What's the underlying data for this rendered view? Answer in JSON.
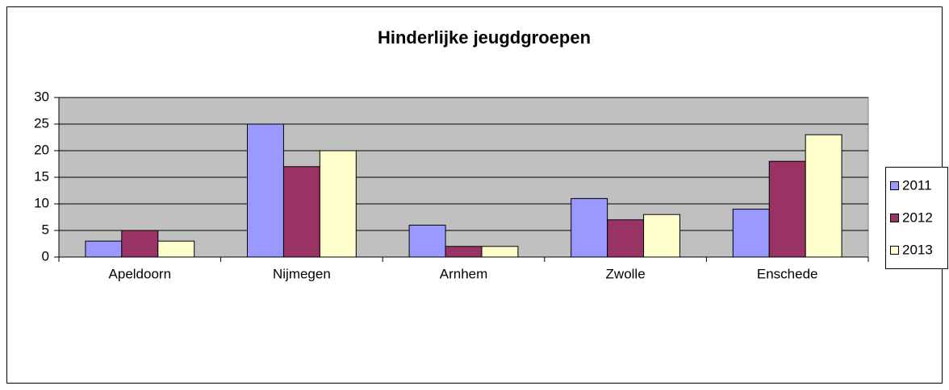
{
  "chart_data": {
    "type": "bar",
    "title": "Hinderlijke jeugdgroepen",
    "categories": [
      "Apeldoorn",
      "Nijmegen",
      "Arnhem",
      "Zwolle",
      "Enschede"
    ],
    "series": [
      {
        "name": "2011",
        "color": "#9999ff",
        "values": [
          3,
          25,
          6,
          11,
          9
        ]
      },
      {
        "name": "2012",
        "color": "#993366",
        "values": [
          5,
          17,
          2,
          7,
          18
        ]
      },
      {
        "name": "2013",
        "color": "#ffffcc",
        "values": [
          3,
          20,
          2,
          8,
          23
        ]
      }
    ],
    "ylim": [
      0,
      30
    ],
    "yticks": [
      0,
      5,
      10,
      15,
      20,
      25,
      30
    ],
    "grid": true,
    "legend": "right"
  }
}
